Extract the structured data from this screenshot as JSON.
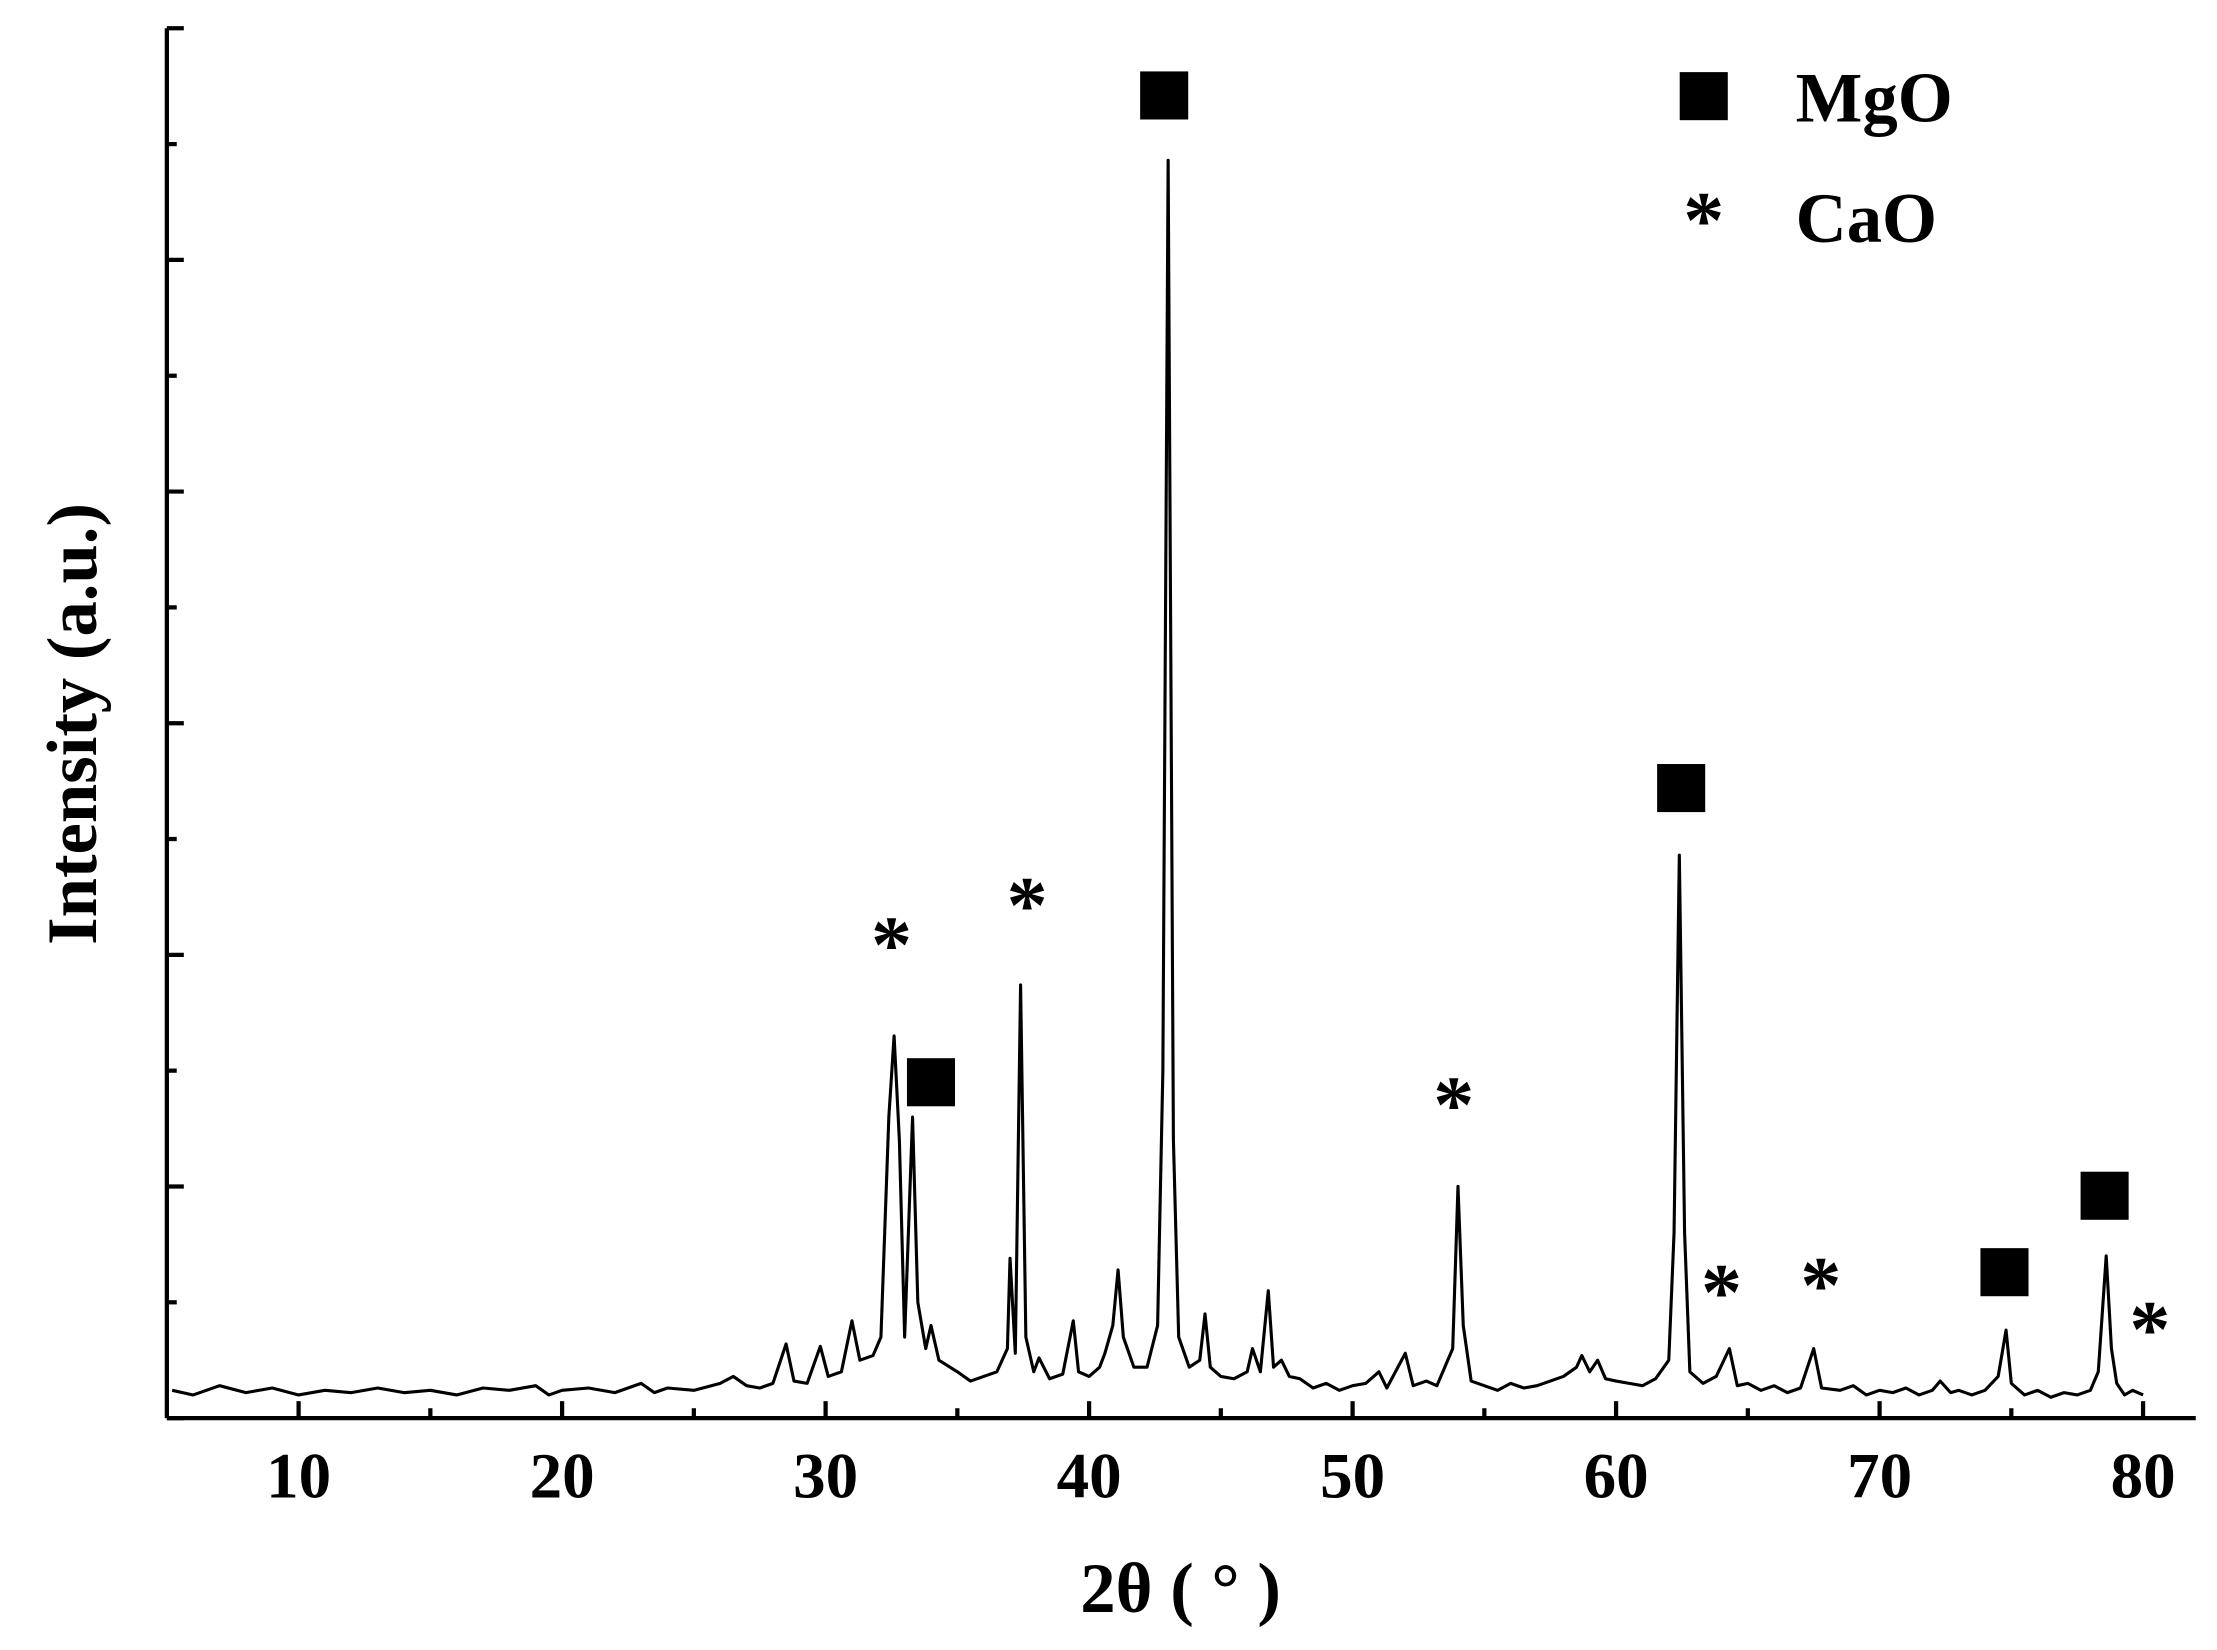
{
  "chart_data": {
    "type": "line",
    "xlabel": "2θ ( ° )",
    "ylabel": "Intensity (a.u.)",
    "xlim": [
      5,
      82
    ],
    "xticks": [
      10,
      20,
      30,
      40,
      50,
      60,
      70,
      80
    ],
    "xminorticks": [
      15,
      25,
      35,
      45,
      55,
      65,
      75
    ],
    "ylim": [
      0,
      6
    ],
    "yticks": [
      0,
      1,
      2,
      3,
      4,
      5,
      6
    ],
    "yminorticks": [
      0.5,
      1.5,
      2.5,
      3.5,
      4.5,
      5.5
    ],
    "color": "#000000",
    "x": [
      5.2,
      6,
      7,
      8,
      9,
      10,
      11,
      12,
      13,
      14,
      15,
      16,
      17,
      18,
      19,
      19.5,
      20,
      21,
      22,
      23,
      23.5,
      24,
      25,
      26,
      26.5,
      27,
      27.5,
      28,
      28.5,
      28.8,
      29.3,
      29.8,
      30.1,
      30.6,
      31.0,
      31.3,
      31.8,
      32.1,
      32.4,
      32.6,
      32.8,
      33.0,
      33.3,
      33.5,
      33.8,
      34.0,
      34.3,
      35,
      35.5,
      36,
      36.5,
      36.9,
      37.0,
      37.2,
      37.4,
      37.6,
      37.9,
      38.1,
      38.5,
      39,
      39.4,
      39.6,
      40,
      40.4,
      40.6,
      40.9,
      41.1,
      41.3,
      41.7,
      42.2,
      42.6,
      42.8,
      43.0,
      43.2,
      43.4,
      43.8,
      44.2,
      44.4,
      44.6,
      45,
      45.5,
      46,
      46.2,
      46.5,
      46.8,
      47.0,
      47.3,
      47.6,
      48,
      48.5,
      49,
      49.5,
      50,
      50.5,
      51,
      51.3,
      52,
      52.3,
      52.8,
      53.2,
      53.5,
      53.8,
      54.0,
      54.2,
      54.5,
      55,
      55.5,
      56,
      56.5,
      57,
      57.5,
      58,
      58.5,
      58.7,
      59,
      59.3,
      59.6,
      60,
      60.5,
      61,
      61.5,
      62.0,
      62.2,
      62.4,
      62.6,
      62.8,
      63.3,
      63.8,
      64.3,
      64.6,
      65,
      65.5,
      66,
      66.5,
      67,
      67.5,
      67.8,
      68.5,
      69,
      69.5,
      70,
      70.5,
      71,
      71.5,
      72,
      72.3,
      72.7,
      73,
      73.5,
      74,
      74.5,
      74.8,
      75.0,
      75.5,
      76,
      76.5,
      77,
      77.5,
      78,
      78.3,
      78.6,
      78.8,
      79.0,
      79.3,
      79.6,
      80
    ],
    "values": [
      0.12,
      0.1,
      0.14,
      0.11,
      0.13,
      0.1,
      0.12,
      0.11,
      0.13,
      0.11,
      0.12,
      0.1,
      0.13,
      0.12,
      0.14,
      0.1,
      0.12,
      0.13,
      0.11,
      0.15,
      0.11,
      0.13,
      0.12,
      0.15,
      0.18,
      0.14,
      0.13,
      0.15,
      0.32,
      0.16,
      0.15,
      0.31,
      0.18,
      0.2,
      0.42,
      0.25,
      0.27,
      0.35,
      1.3,
      1.65,
      1.2,
      0.35,
      1.3,
      0.5,
      0.3,
      0.4,
      0.25,
      0.2,
      0.16,
      0.18,
      0.2,
      0.3,
      0.69,
      0.28,
      1.87,
      0.35,
      0.2,
      0.26,
      0.17,
      0.19,
      0.42,
      0.2,
      0.18,
      0.22,
      0.28,
      0.4,
      0.64,
      0.35,
      0.22,
      0.22,
      0.4,
      1.5,
      5.43,
      1.2,
      0.35,
      0.22,
      0.25,
      0.45,
      0.22,
      0.18,
      0.17,
      0.2,
      0.3,
      0.2,
      0.55,
      0.22,
      0.25,
      0.18,
      0.17,
      0.13,
      0.15,
      0.12,
      0.14,
      0.15,
      0.2,
      0.13,
      0.28,
      0.14,
      0.16,
      0.14,
      0.22,
      0.3,
      1.0,
      0.4,
      0.16,
      0.14,
      0.12,
      0.15,
      0.13,
      0.14,
      0.16,
      0.18,
      0.22,
      0.27,
      0.2,
      0.25,
      0.17,
      0.16,
      0.15,
      0.14,
      0.17,
      0.25,
      0.8,
      2.43,
      0.8,
      0.2,
      0.15,
      0.18,
      0.3,
      0.14,
      0.15,
      0.12,
      0.14,
      0.11,
      0.13,
      0.3,
      0.13,
      0.12,
      0.14,
      0.1,
      0.12,
      0.11,
      0.13,
      0.1,
      0.12,
      0.16,
      0.11,
      0.12,
      0.1,
      0.12,
      0.18,
      0.38,
      0.15,
      0.1,
      0.12,
      0.09,
      0.11,
      0.1,
      0.12,
      0.2,
      0.7,
      0.3,
      0.15,
      0.1,
      0.12,
      0.1
    ],
    "series": [
      {
        "name": "MgO",
        "marker": "square",
        "x": [
          42.85,
          34.0,
          62.47,
          74.74,
          78.54
        ],
        "values": [
          5.71,
          1.45,
          2.72,
          0.63,
          0.96
        ]
      },
      {
        "name": "CaO",
        "marker": "asterisk",
        "label": "*",
        "x": [
          32.5,
          37.65,
          53.84,
          64.0,
          67.77,
          80.26
        ],
        "values": [
          2.06,
          2.23,
          1.37,
          0.56,
          0.59,
          0.4
        ]
      }
    ]
  }
}
